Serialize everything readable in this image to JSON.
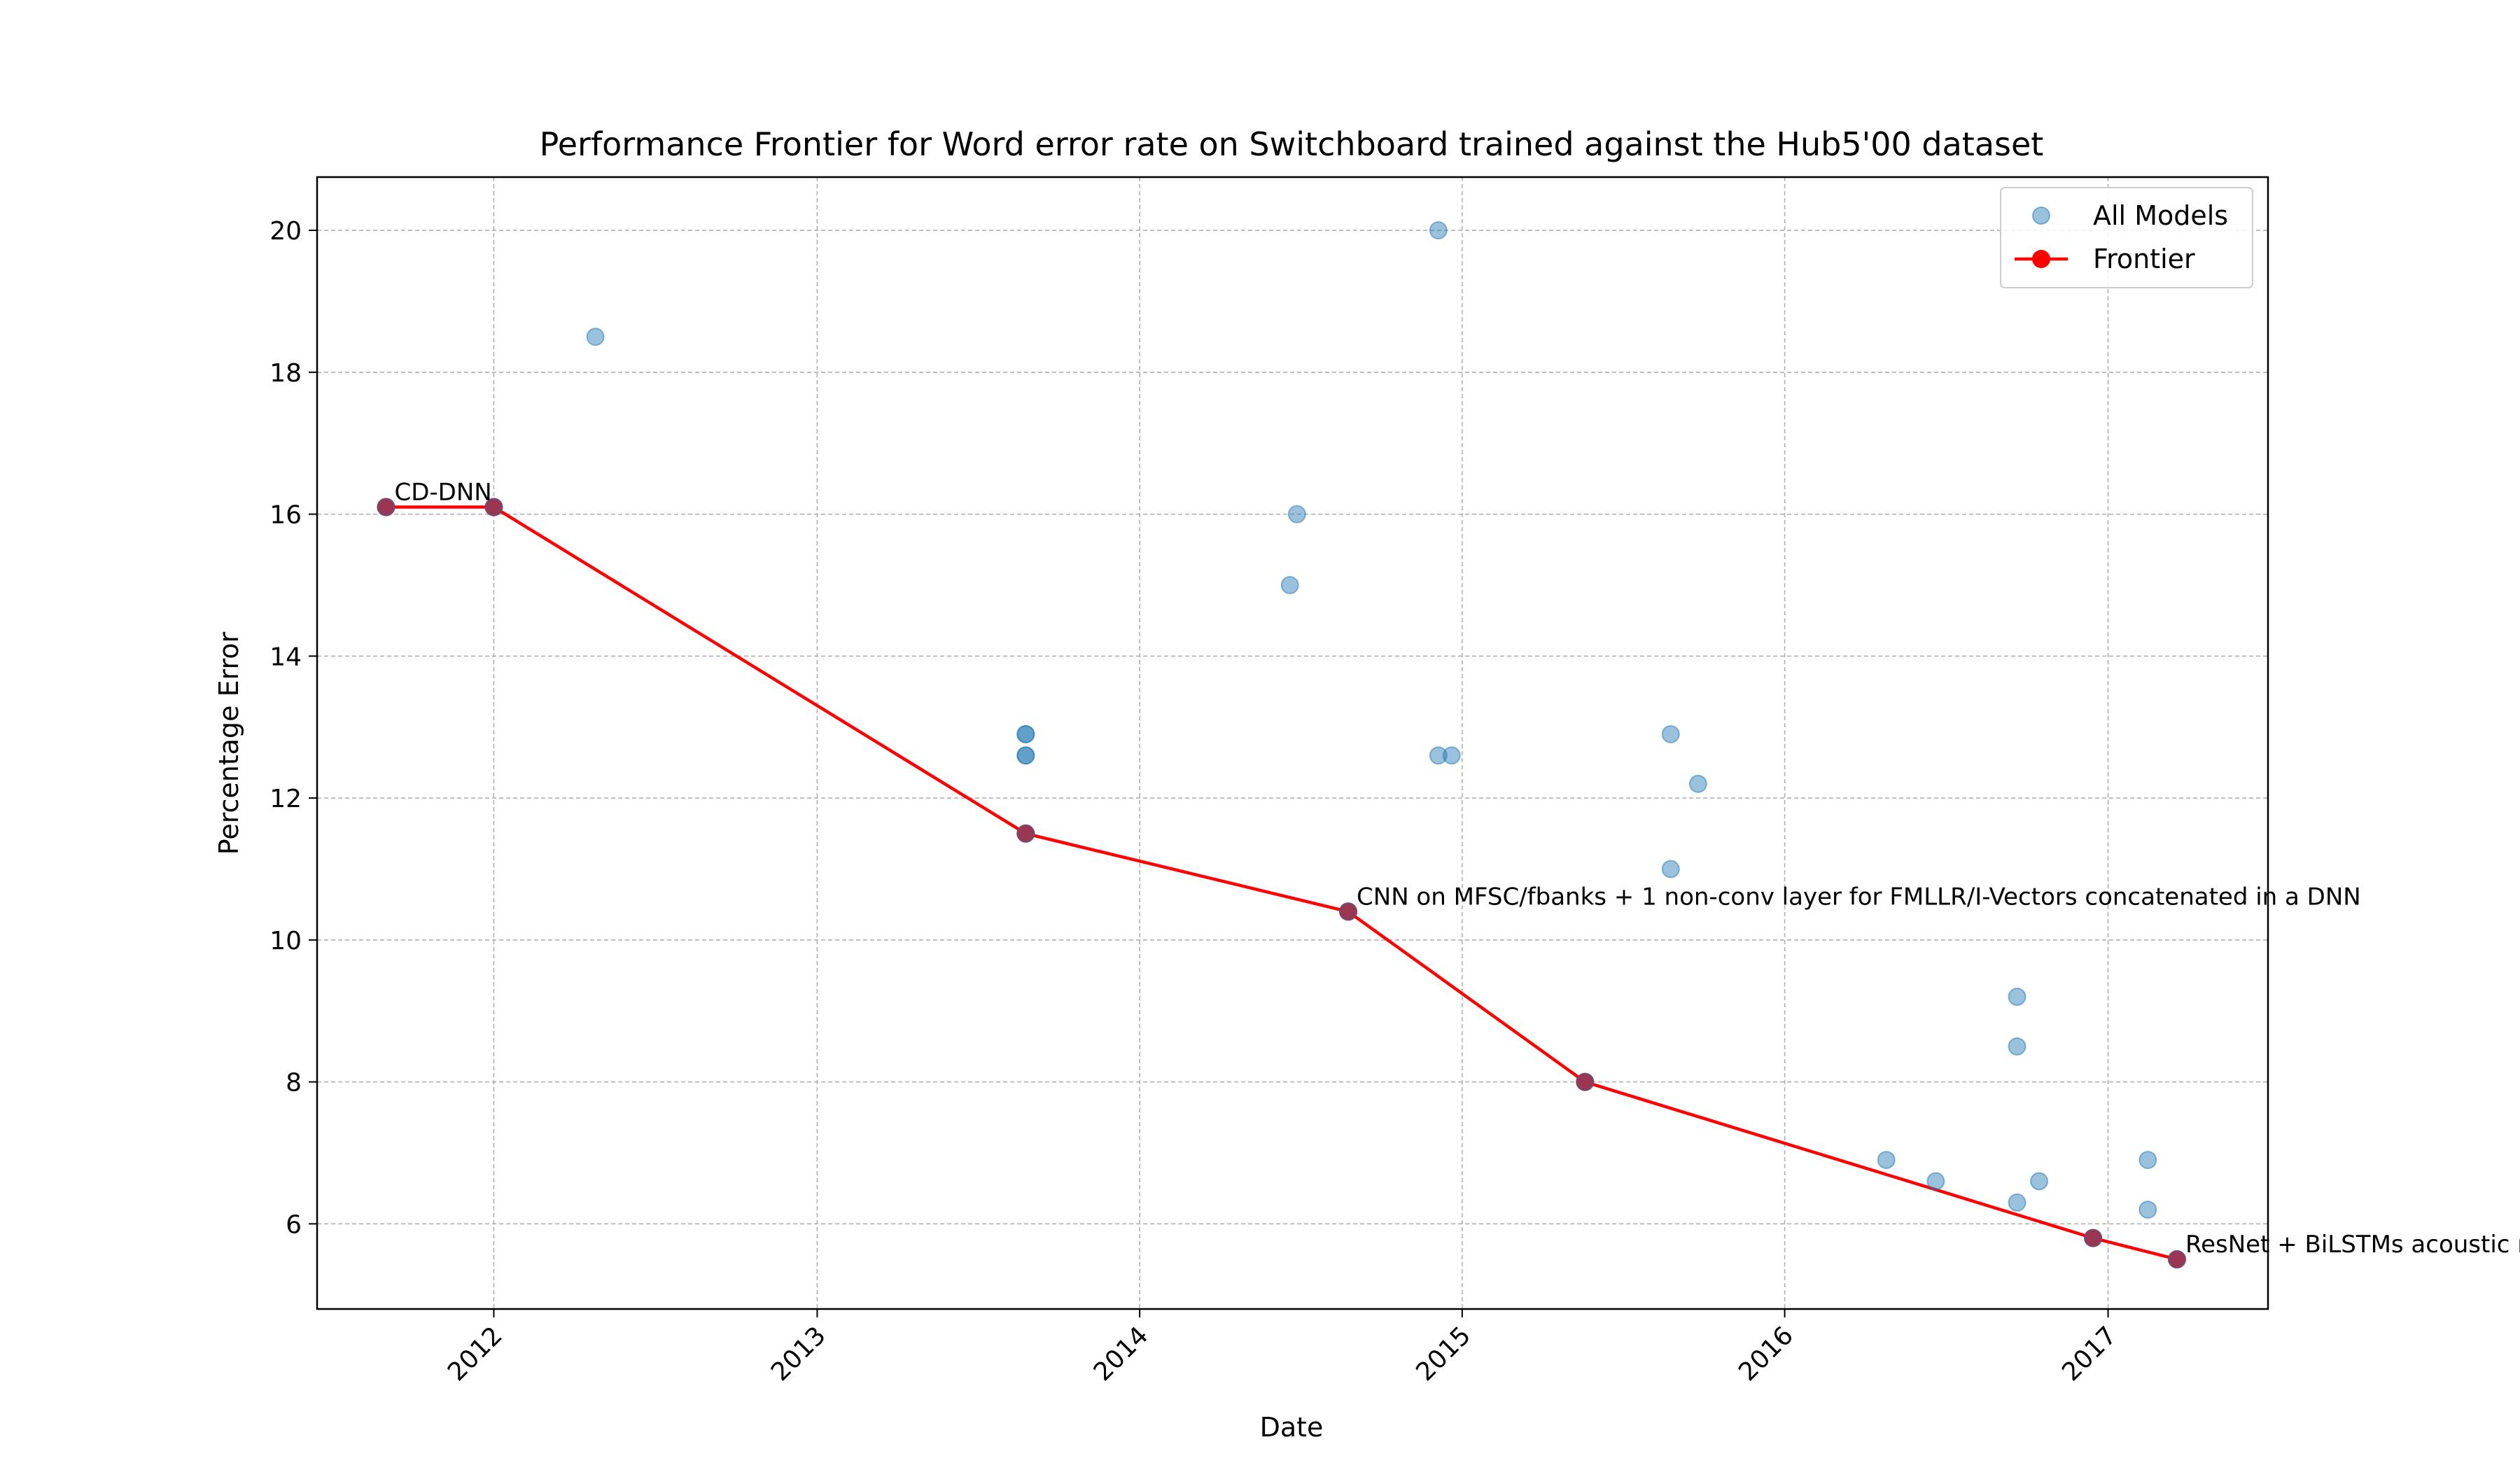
{
  "chart_data": {
    "type": "scatter",
    "title": "Performance Frontier for Word error rate on Switchboard trained against the Hub5'00 dataset",
    "xlabel": "Date",
    "ylabel": "Percentage Error",
    "x_axis_type": "date",
    "xlim": [
      "2011-06-15",
      "2017-07-01"
    ],
    "ylim": [
      4.8,
      20.75
    ],
    "x_ticks": [
      {
        "date": "2012-01-01",
        "label": "2012"
      },
      {
        "date": "2013-01-01",
        "label": "2013"
      },
      {
        "date": "2014-01-01",
        "label": "2014"
      },
      {
        "date": "2015-01-01",
        "label": "2015"
      },
      {
        "date": "2016-01-01",
        "label": "2016"
      },
      {
        "date": "2017-01-01",
        "label": "2017"
      }
    ],
    "y_ticks": [
      6,
      8,
      10,
      12,
      14,
      16,
      18,
      20
    ],
    "grid": true,
    "legend_position": "top-right",
    "series": [
      {
        "name": "All Models",
        "kind": "scatter",
        "color": "#1f77b4",
        "points": [
          {
            "date": "2011-09-01",
            "y": 16.1
          },
          {
            "date": "2012-01-01",
            "y": 16.1
          },
          {
            "date": "2012-04-25",
            "y": 18.5
          },
          {
            "date": "2013-08-25",
            "y": 12.9
          },
          {
            "date": "2013-08-25",
            "y": 12.9
          },
          {
            "date": "2013-08-25",
            "y": 12.6
          },
          {
            "date": "2013-08-25",
            "y": 12.6
          },
          {
            "date": "2013-08-25",
            "y": 11.5
          },
          {
            "date": "2014-06-20",
            "y": 15.0
          },
          {
            "date": "2014-06-28",
            "y": 16.0
          },
          {
            "date": "2014-08-25",
            "y": 10.4
          },
          {
            "date": "2014-12-05",
            "y": 20.0
          },
          {
            "date": "2014-12-05",
            "y": 12.6
          },
          {
            "date": "2014-12-20",
            "y": 12.6
          },
          {
            "date": "2015-05-20",
            "y": 8.0
          },
          {
            "date": "2015-08-25",
            "y": 12.9
          },
          {
            "date": "2015-08-25",
            "y": 11.0
          },
          {
            "date": "2015-09-25",
            "y": 12.2
          },
          {
            "date": "2016-04-25",
            "y": 6.9
          },
          {
            "date": "2016-06-20",
            "y": 6.6
          },
          {
            "date": "2016-09-20",
            "y": 9.2
          },
          {
            "date": "2016-09-20",
            "y": 8.5
          },
          {
            "date": "2016-09-20",
            "y": 6.3
          },
          {
            "date": "2016-10-15",
            "y": 6.6
          },
          {
            "date": "2016-12-15",
            "y": 5.8
          },
          {
            "date": "2017-02-15",
            "y": 6.9
          },
          {
            "date": "2017-02-15",
            "y": 6.2
          },
          {
            "date": "2017-03-20",
            "y": 5.5
          }
        ]
      },
      {
        "name": "Frontier",
        "kind": "line",
        "color": "#ff0000",
        "points": [
          {
            "date": "2011-09-01",
            "y": 16.1
          },
          {
            "date": "2012-01-01",
            "y": 16.1
          },
          {
            "date": "2013-08-25",
            "y": 11.5
          },
          {
            "date": "2014-08-25",
            "y": 10.4
          },
          {
            "date": "2015-05-20",
            "y": 8.0
          },
          {
            "date": "2016-12-15",
            "y": 5.8
          },
          {
            "date": "2017-03-20",
            "y": 5.5
          }
        ]
      }
    ],
    "annotations": [
      {
        "text": "CD-DNN",
        "date": "2011-09-01",
        "y": 16.1
      },
      {
        "text": "CNN on MFSC/fbanks + 1 non-conv layer for FMLLR/I-Vectors concatenated in a DNN",
        "date": "2014-08-25",
        "y": 10.4
      },
      {
        "text": "ResNet + BiLSTMs acoustic model",
        "date": "2017-03-20",
        "y": 5.5
      }
    ]
  }
}
